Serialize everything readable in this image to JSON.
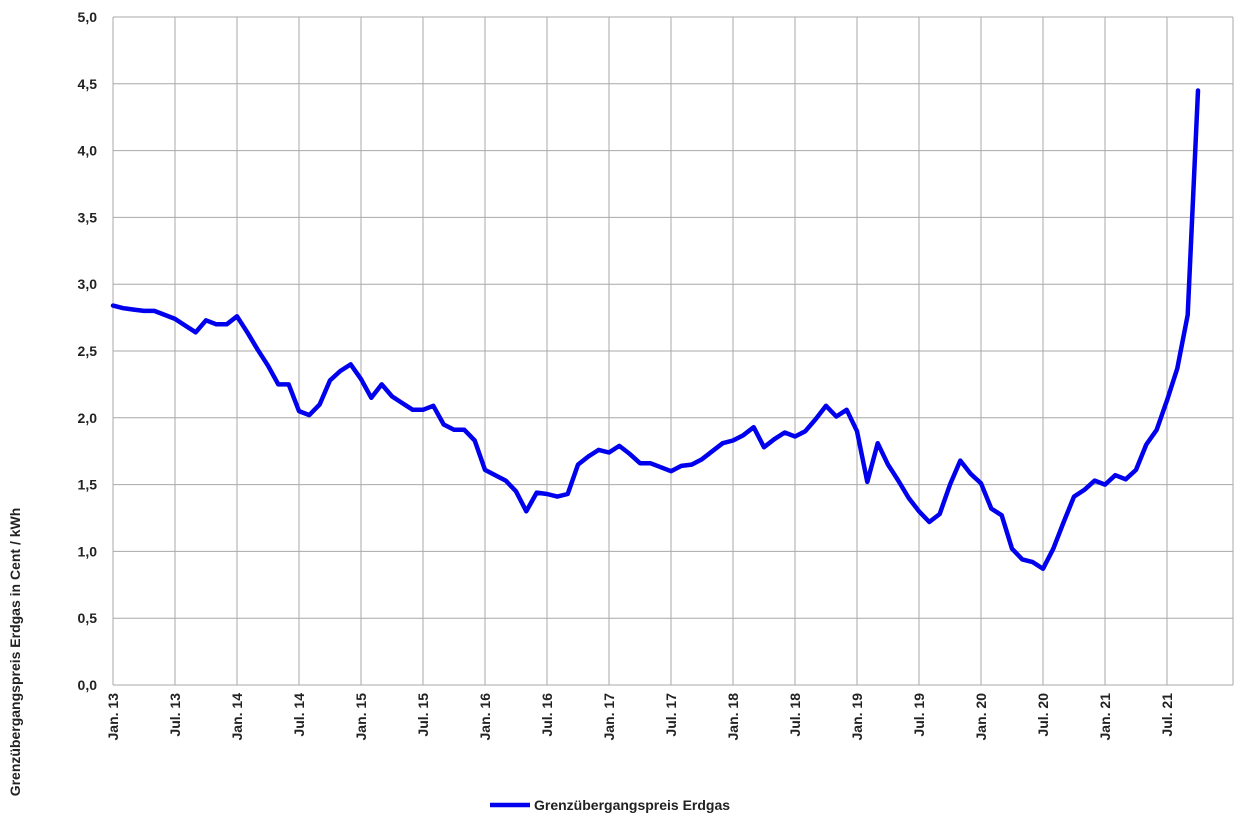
{
  "chart_data": {
    "type": "line",
    "ylabel": "Grenzübergangspreis Erdgas in Cent / kWh",
    "xlabel": "",
    "ylim": [
      0,
      5
    ],
    "yticks": [
      "0,0",
      "0,5",
      "1,0",
      "1,5",
      "2,0",
      "2,5",
      "3,0",
      "3,5",
      "4,0",
      "4,5",
      "5,0"
    ],
    "xtick_labels": [
      "Jan. 13",
      "Jul. 13",
      "Jan. 14",
      "Jul. 14",
      "Jan. 15",
      "Jul. 15",
      "Jan. 16",
      "Jul. 16",
      "Jan. 17",
      "Jul. 17",
      "Jan. 18",
      "Jul. 18",
      "Jan. 19",
      "Jul. 19",
      "Jan. 20",
      "Jul. 20",
      "Jan. 21",
      "Jul. 21"
    ],
    "grid": true,
    "legend_position": "bottom",
    "color": "#0000ee",
    "series": [
      {
        "name": "Grenzübergangspreis Erdgas",
        "values": [
          2.84,
          2.82,
          2.81,
          2.8,
          2.8,
          2.77,
          2.74,
          2.69,
          2.64,
          2.73,
          2.7,
          2.7,
          2.76,
          2.64,
          2.51,
          2.39,
          2.25,
          2.25,
          2.05,
          2.02,
          2.1,
          2.28,
          2.35,
          2.4,
          2.29,
          2.15,
          2.25,
          2.16,
          2.11,
          2.06,
          2.06,
          2.09,
          1.95,
          1.91,
          1.91,
          1.83,
          1.61,
          1.57,
          1.53,
          1.45,
          1.3,
          1.44,
          1.43,
          1.41,
          1.43,
          1.65,
          1.71,
          1.76,
          1.74,
          1.79,
          1.73,
          1.66,
          1.66,
          1.63,
          1.6,
          1.64,
          1.65,
          1.69,
          1.75,
          1.81,
          1.83,
          1.87,
          1.93,
          1.78,
          1.84,
          1.89,
          1.86,
          1.9,
          1.99,
          2.09,
          2.01,
          2.06,
          1.9,
          1.52,
          1.81,
          1.65,
          1.53,
          1.4,
          1.3,
          1.22,
          1.28,
          1.5,
          1.68,
          1.58,
          1.51,
          1.32,
          1.27,
          1.02,
          0.94,
          0.92,
          0.87,
          1.02,
          1.22,
          1.41,
          1.46,
          1.53,
          1.5,
          1.57,
          1.54,
          1.61,
          1.8,
          1.91,
          2.13,
          2.37,
          2.77,
          4.45
        ]
      }
    ]
  }
}
